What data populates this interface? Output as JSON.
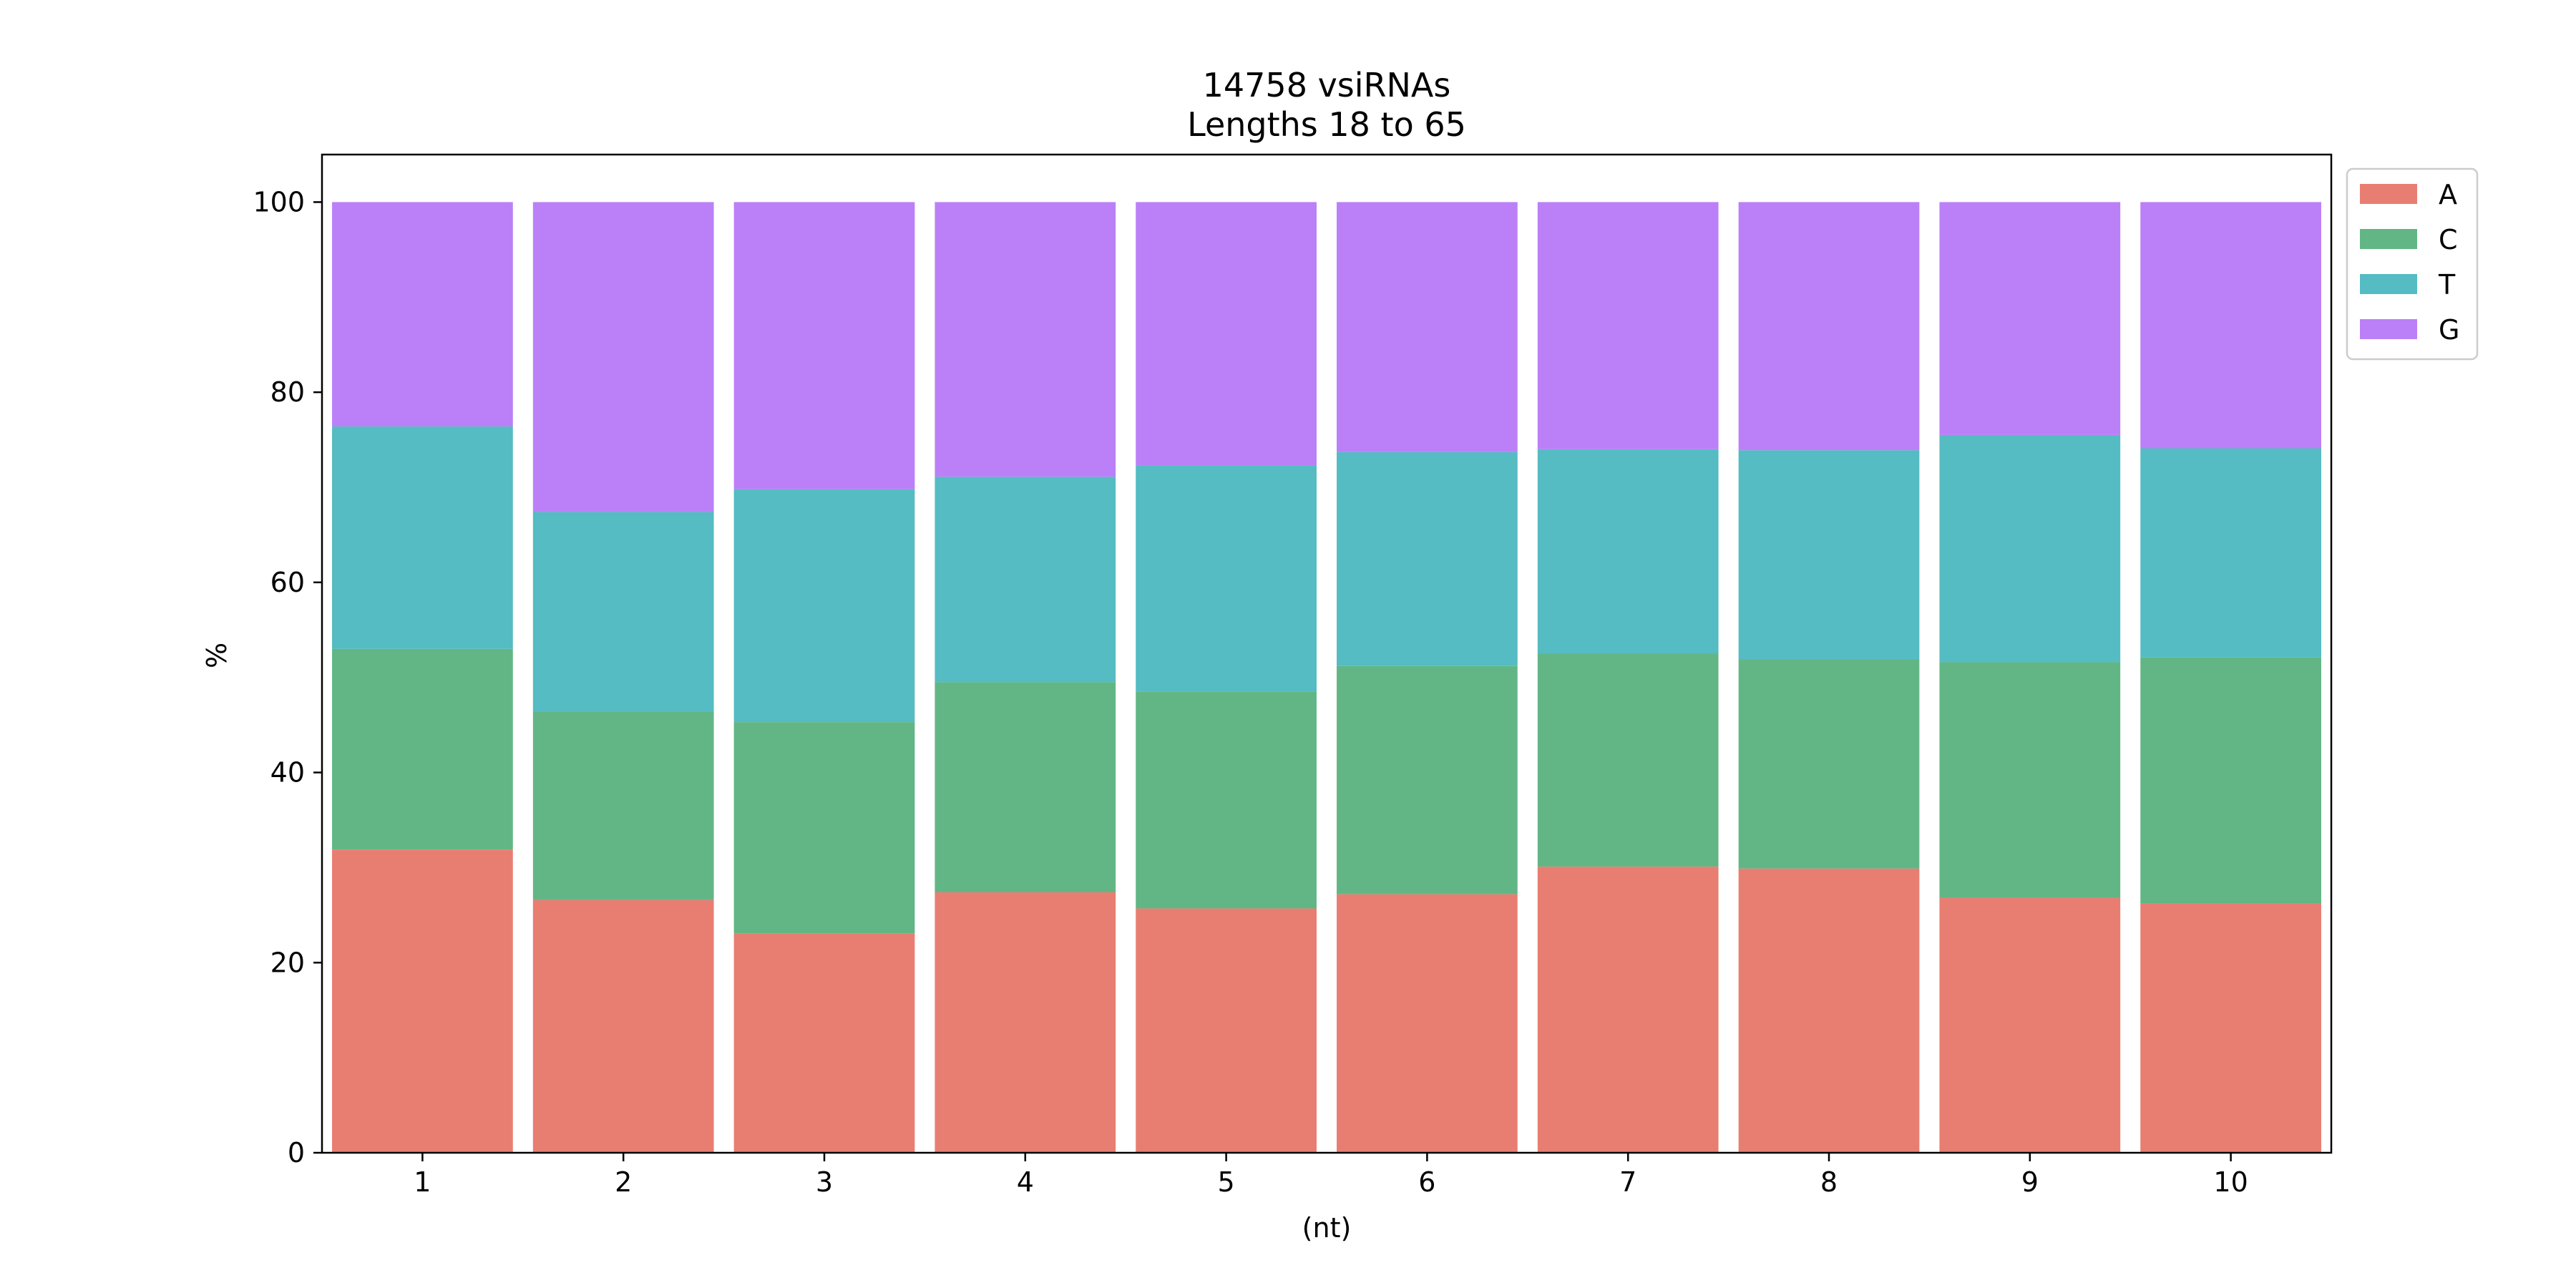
{
  "chart_data": {
    "type": "bar",
    "stacked": true,
    "title_lines": [
      "14758 vsiRNAs",
      "Lengths 18 to 65"
    ],
    "xlabel": "(nt)",
    "ylabel": "%",
    "categories": [
      "1",
      "2",
      "3",
      "4",
      "5",
      "6",
      "7",
      "8",
      "9",
      "10"
    ],
    "ylim": [
      0,
      105
    ],
    "yticks": [
      0,
      20,
      40,
      60,
      80,
      100
    ],
    "grid": false,
    "legend_position": "outside-top-right",
    "series": [
      {
        "name": "A",
        "color": "#e87e72",
        "values": [
          31.9,
          26.6,
          23.1,
          27.4,
          25.7,
          27.2,
          30.1,
          29.9,
          26.8,
          26.2
        ]
      },
      {
        "name": "C",
        "color": "#62b685",
        "values": [
          21.1,
          19.8,
          22.2,
          22.1,
          22.8,
          24.0,
          22.4,
          22.0,
          24.8,
          25.9
        ]
      },
      {
        "name": "T",
        "color": "#54bcc2",
        "values": [
          23.4,
          21.0,
          24.5,
          21.6,
          23.8,
          22.5,
          21.5,
          22.0,
          23.9,
          22.0
        ]
      },
      {
        "name": "G",
        "color": "#bb80f7",
        "values": [
          23.6,
          32.6,
          30.2,
          28.9,
          27.7,
          26.3,
          26.0,
          26.1,
          24.5,
          25.9
        ]
      }
    ]
  }
}
